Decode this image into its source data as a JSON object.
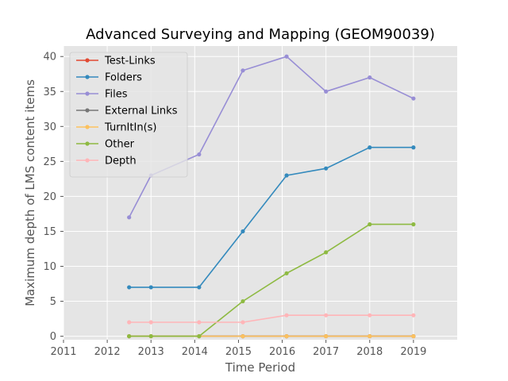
{
  "chart_data": {
    "type": "line",
    "title": "Advanced Surveying and Mapping (GEOM90039)",
    "xlabel": "Time Period",
    "ylabel": "Maximum depth of LMS content items",
    "xlim": [
      2011,
      2020
    ],
    "ylim": [
      -0.5,
      41.5
    ],
    "xticks": [
      2011,
      2012,
      2013,
      2014,
      2015,
      2016,
      2017,
      2018,
      2019
    ],
    "yticks": [
      0,
      5,
      10,
      15,
      20,
      25,
      30,
      35,
      40
    ],
    "grid": true,
    "legend_position": "upper-left",
    "x": [
      2012.5,
      2013.0,
      2014.1,
      2015.1,
      2016.1,
      2017.0,
      2018.0,
      2019.0
    ],
    "series": [
      {
        "name": "Test-Links",
        "color": "#E24A33",
        "values": [
          0,
          0,
          0,
          0,
          0,
          0,
          0,
          0
        ]
      },
      {
        "name": "Folders",
        "color": "#348ABD",
        "values": [
          7,
          7,
          7,
          15,
          23,
          24,
          27,
          27
        ]
      },
      {
        "name": "Files",
        "color": "#988ED5",
        "values": [
          17,
          23,
          26,
          38,
          40,
          35,
          37,
          34
        ]
      },
      {
        "name": "External Links",
        "color": "#777777",
        "values": [
          0,
          0,
          0,
          0,
          0,
          0,
          0,
          0
        ]
      },
      {
        "name": "TurnItIn(s)",
        "color": "#FBC15E",
        "values": [
          0,
          0,
          0,
          0,
          0,
          0,
          0,
          0
        ]
      },
      {
        "name": "Other",
        "color": "#8EBA42",
        "values": [
          0,
          0,
          0,
          5,
          9,
          12,
          16,
          16
        ]
      },
      {
        "name": "Depth",
        "color": "#FFB5B8",
        "values": [
          2,
          2,
          2,
          2,
          3,
          3,
          3,
          3
        ]
      }
    ]
  }
}
